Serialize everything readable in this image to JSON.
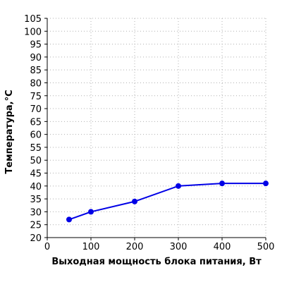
{
  "chart_data": {
    "type": "line",
    "xlabel": "Выходная мощность блока питания, Вт",
    "ylabel": "Температура,°C",
    "xlim": [
      0,
      500
    ],
    "ylim": [
      20,
      105
    ],
    "x_ticks": [
      0,
      100,
      200,
      300,
      400,
      500
    ],
    "y_ticks": [
      20,
      25,
      30,
      35,
      40,
      45,
      50,
      55,
      60,
      65,
      70,
      75,
      80,
      85,
      90,
      95,
      100,
      105
    ],
    "grid": true,
    "legend": "none",
    "series": [
      {
        "x": [
          50,
          100,
          200,
          300,
          400,
          500
        ],
        "values": [
          27,
          30,
          34,
          40,
          41,
          41
        ],
        "color": "#0000e6"
      }
    ]
  }
}
